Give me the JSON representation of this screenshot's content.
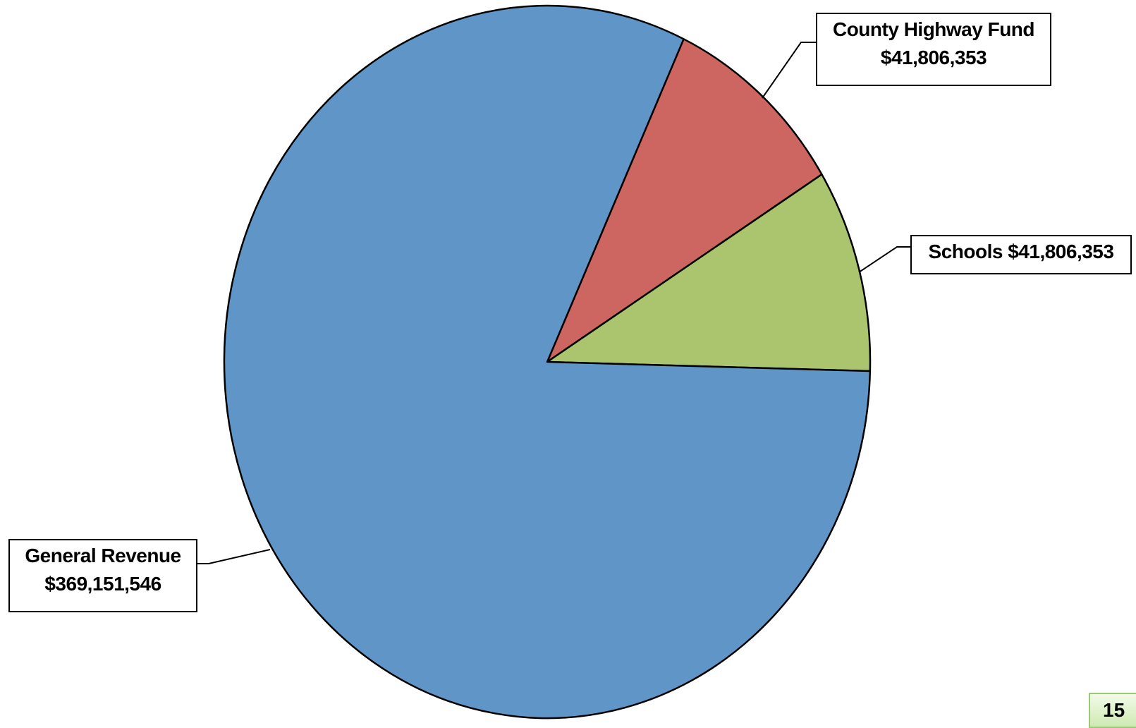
{
  "chart_data": {
    "type": "pie",
    "slices": [
      {
        "label": "County Highway Fund",
        "value_text": "$41,806,353",
        "value": 41806353,
        "color": "#cd6660"
      },
      {
        "label": "Schools",
        "value_text": "$41,806,353",
        "value": 41806353,
        "color": "#abc46e"
      },
      {
        "label": "General Revenue",
        "value_text": "$369,151,546",
        "value": 369151546,
        "color": "#6096c7"
      }
    ],
    "start_angle_deg": 65,
    "direction": "clockwise",
    "outline_color": "#000000"
  },
  "page": {
    "number": "15"
  }
}
